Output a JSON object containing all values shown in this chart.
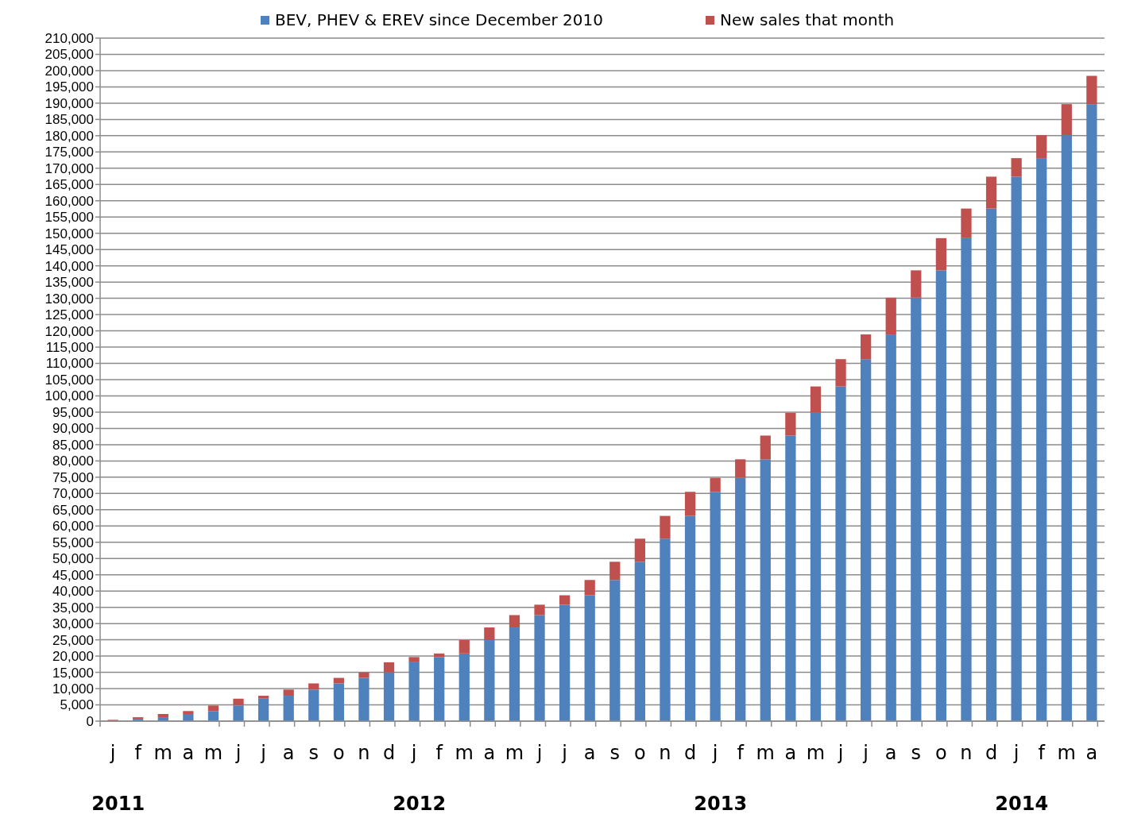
{
  "chart_data": {
    "type": "bar",
    "stacked": true,
    "categories": [
      "j",
      "f",
      "m",
      "a",
      "m",
      "j",
      "j",
      "a",
      "s",
      "o",
      "n",
      "d",
      "j",
      "f",
      "m",
      "a",
      "m",
      "j",
      "j",
      "a",
      "s",
      "o",
      "n",
      "d",
      "j",
      "f",
      "m",
      "a",
      "m",
      "j",
      "j",
      "a",
      "s",
      "o",
      "n",
      "d",
      "j",
      "f",
      "m",
      "a"
    ],
    "series": [
      {
        "name": "BEV, PHEV & EREV since December 2010",
        "color": "#4f81bd",
        "values": [
          null,
          700,
          1200,
          2200,
          3100,
          4800,
          6900,
          7800,
          9700,
          11600,
          13300,
          15000,
          18100,
          19700,
          20800,
          24900,
          28800,
          32600,
          35800,
          38700,
          43400,
          49000,
          56100,
          63100,
          70500,
          74800,
          80500,
          87800,
          94800,
          102900,
          111300,
          118900,
          130200,
          138600,
          148500,
          157600,
          167400,
          173100,
          180200,
          189700
        ]
      },
      {
        "name": "New sales that month",
        "color": "#c0504d",
        "values": [
          400,
          500,
          1000,
          900,
          1700,
          2100,
          900,
          1900,
          1900,
          1700,
          1700,
          3100,
          1600,
          1100,
          4100,
          3900,
          3800,
          3200,
          2900,
          4700,
          5600,
          7100,
          7000,
          7400,
          4300,
          5700,
          7300,
          7000,
          8100,
          8400,
          7600,
          11300,
          8400,
          9900,
          9100,
          9800,
          5700,
          7100,
          9500,
          8700
        ]
      }
    ],
    "ylim": [
      0,
      210000
    ],
    "yticks": [
      0,
      {
        "value": 5000,
        "label": "5,000"
      },
      {
        "value": 10000,
        "label": "10,000"
      },
      {
        "value": 15000,
        "label": "15,000"
      },
      {
        "value": 20000,
        "label": "20,000"
      },
      {
        "value": 25000,
        "label": "25,000"
      },
      {
        "value": 30000,
        "label": "30,000"
      },
      {
        "value": 35000,
        "label": "35,000"
      },
      {
        "value": 40000,
        "label": "40,000"
      },
      {
        "value": 45000,
        "label": "45,000"
      },
      {
        "value": 50000,
        "label": "50,000"
      },
      {
        "value": 55000,
        "label": "55,000"
      },
      {
        "value": 60000,
        "label": "60,000"
      },
      {
        "value": 65000,
        "label": "65,000"
      },
      {
        "value": 70000,
        "label": "70,000"
      },
      {
        "value": 75000,
        "label": "75,000"
      },
      {
        "value": 80000,
        "label": "80,000"
      },
      {
        "value": 85000,
        "label": "85,000"
      },
      {
        "value": 90000,
        "label": "90,000"
      },
      {
        "value": 95000,
        "label": "95,000"
      },
      {
        "value": 100000,
        "label": "100,000"
      },
      {
        "value": 105000,
        "label": "105,000"
      },
      {
        "value": 110000,
        "label": "110,000"
      },
      {
        "value": 115000,
        "label": "115,000"
      },
      {
        "value": 120000,
        "label": "120,000"
      },
      {
        "value": 125000,
        "label": "125,000"
      },
      {
        "value": 130000,
        "label": "130,000"
      },
      {
        "value": 135000,
        "label": "135,000"
      },
      {
        "value": 140000,
        "label": "140,000"
      },
      {
        "value": 145000,
        "label": "145,000"
      },
      {
        "value": 150000,
        "label": "150,000"
      },
      {
        "value": 155000,
        "label": "155,000"
      },
      {
        "value": 160000,
        "label": "160,000"
      },
      {
        "value": 165000,
        "label": "165,000"
      },
      {
        "value": 170000,
        "label": "170,000"
      },
      {
        "value": 175000,
        "label": "175,000"
      },
      {
        "value": 180000,
        "label": "180,000"
      },
      {
        "value": 185000,
        "label": "185,000"
      },
      {
        "value": 190000,
        "label": "190,000"
      },
      {
        "value": 195000,
        "label": "195,000"
      },
      {
        "value": 200000,
        "label": "200,000"
      },
      {
        "value": 205000,
        "label": "205,000"
      },
      {
        "value": 210000,
        "label": "210,000"
      }
    ],
    "grid": "y",
    "legend": "top",
    "annotations": [
      "2011",
      "2012",
      "2013",
      "2014"
    ]
  }
}
